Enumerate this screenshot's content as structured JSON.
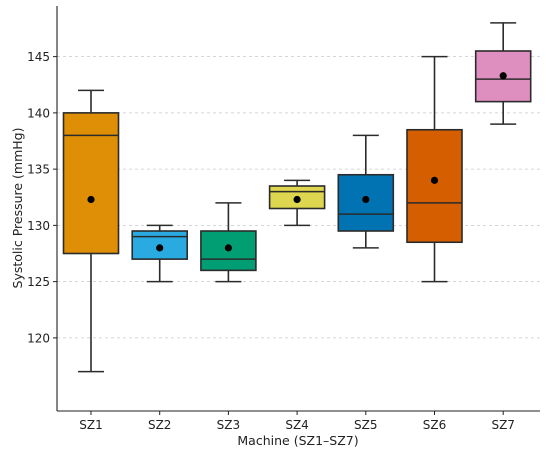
{
  "chart_data": {
    "type": "box",
    "xlabel": "Machine (SZ1–SZ7)",
    "ylabel": "Systolic Pressure (mmHg)",
    "ylim": [
      113.5,
      149.5
    ],
    "yticks": [
      120,
      125,
      130,
      135,
      140,
      145
    ],
    "grid": "horizontal dashed",
    "legend": "none",
    "categories": [
      "SZ1",
      "SZ2",
      "SZ3",
      "SZ4",
      "SZ5",
      "SZ6",
      "SZ7"
    ],
    "boxes": [
      {
        "category": "SZ1",
        "whisker_low": 117,
        "q1": 127.5,
        "median": 138,
        "q3": 140,
        "whisker_high": 142,
        "mean": 132.3,
        "color": "#DE8F05"
      },
      {
        "category": "SZ2",
        "whisker_low": 125,
        "q1": 127,
        "median": 129,
        "q3": 129.5,
        "whisker_high": 130,
        "mean": 128,
        "color": "#29ABE2"
      },
      {
        "category": "SZ3",
        "whisker_low": 125,
        "q1": 126,
        "median": 127,
        "q3": 129.5,
        "whisker_high": 132,
        "mean": 128,
        "color": "#029E73"
      },
      {
        "category": "SZ4",
        "whisker_low": 130,
        "q1": 131.5,
        "median": 133,
        "q3": 133.5,
        "whisker_high": 134,
        "mean": 132.3,
        "color": "#DDD64E"
      },
      {
        "category": "SZ5",
        "whisker_low": 128,
        "q1": 129.5,
        "median": 131,
        "q3": 134.5,
        "whisker_high": 138,
        "mean": 132.3,
        "color": "#0173B2"
      },
      {
        "category": "SZ6",
        "whisker_low": 125,
        "q1": 128.5,
        "median": 132,
        "q3": 138.5,
        "whisker_high": 145,
        "mean": 134,
        "color": "#D55E00"
      },
      {
        "category": "SZ7",
        "whisker_low": 139,
        "q1": 141,
        "median": 143,
        "q3": 145.5,
        "whisker_high": 148,
        "mean": 143.3,
        "color": "#DE8FBF"
      }
    ]
  }
}
